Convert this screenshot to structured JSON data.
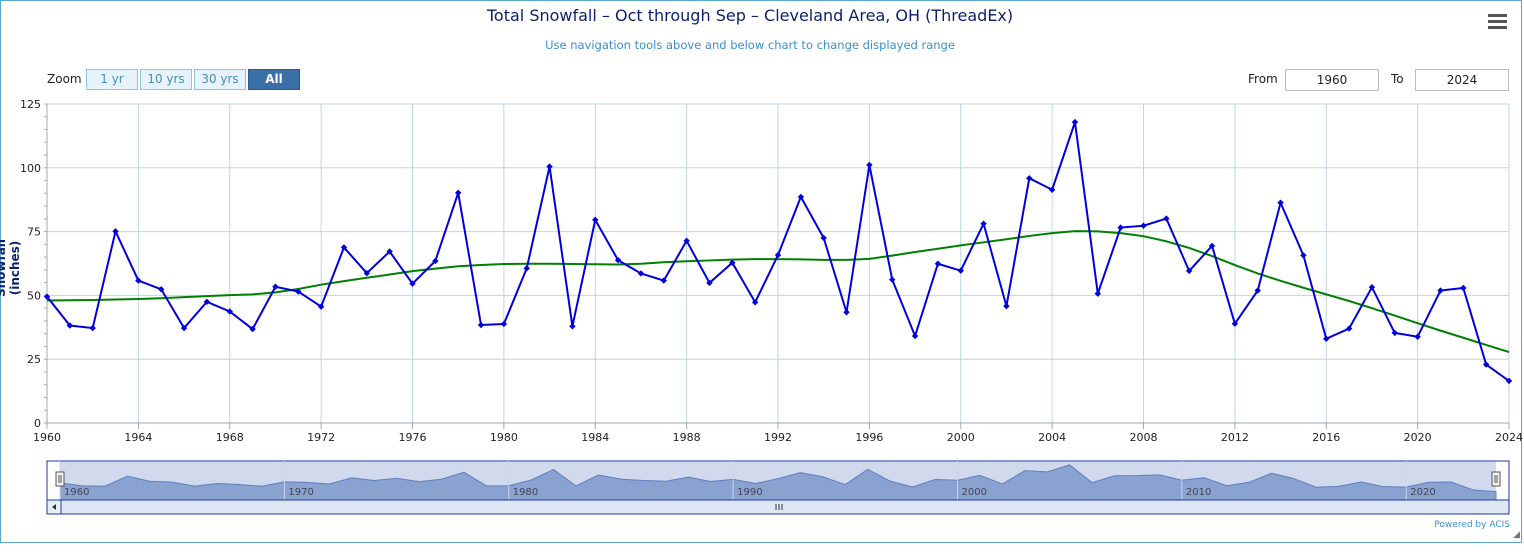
{
  "chart_data": {
    "type": "line",
    "title": "Total Snowfall – Oct through Sep – Cleveland Area, OH (ThreadEx)",
    "subtitle": "Use navigation tools above and below chart to change displayed range",
    "ylabel": "Snowfall (inches)",
    "xlabel": "",
    "xlim": [
      1960,
      2024
    ],
    "ylim": [
      0,
      125
    ],
    "x_ticks": [
      "1960",
      "1964",
      "1968",
      "1972",
      "1976",
      "1980",
      "1984",
      "1988",
      "1992",
      "1996",
      "2000",
      "2004",
      "2008",
      "2012",
      "2016",
      "2020",
      "2024"
    ],
    "y_ticks": [
      "0",
      "25",
      "50",
      "75",
      "100",
      "125"
    ],
    "grid": true,
    "legend": "none",
    "x": [
      1960,
      1961,
      1962,
      1963,
      1964,
      1965,
      1966,
      1967,
      1968,
      1969,
      1970,
      1971,
      1972,
      1973,
      1974,
      1975,
      1976,
      1977,
      1978,
      1979,
      1980,
      1981,
      1982,
      1983,
      1984,
      1985,
      1986,
      1987,
      1988,
      1989,
      1990,
      1991,
      1992,
      1993,
      1994,
      1995,
      1996,
      1997,
      1998,
      1999,
      2000,
      2001,
      2002,
      2003,
      2004,
      2005,
      2006,
      2007,
      2008,
      2009,
      2010,
      2011,
      2012,
      2013,
      2014,
      2015,
      2016,
      2017,
      2018,
      2019,
      2020,
      2021,
      2022,
      2023,
      2024
    ],
    "series": [
      {
        "values": [
          49.5,
          38.2,
          37.2,
          75.1,
          55.8,
          52.4,
          37.2,
          47.5,
          43.7,
          36.8,
          53.4,
          51.5,
          45.6,
          68.8,
          58.7,
          67.2,
          54.6,
          63.5,
          90.2,
          38.4,
          38.8,
          60.6,
          100.5,
          37.9,
          79.6,
          63.8,
          58.6,
          55.8,
          71.4,
          54.9,
          62.8,
          47.3,
          65.8,
          88.6,
          72.5,
          43.4,
          101.1,
          56.2,
          34.1,
          62.4,
          59.7,
          78.1,
          45.8,
          95.9,
          91.4,
          117.9,
          50.7,
          76.6,
          77.3,
          80.1,
          59.6,
          69.4,
          38.9,
          51.9,
          86.3,
          65.7,
          33.0,
          37.0,
          53.2,
          35.3,
          33.8,
          51.9,
          52.9,
          22.9,
          16.5
        ],
        "color": "#0000dd"
      },
      {
        "values": [
          48.0,
          48.1,
          48.2,
          48.4,
          48.6,
          48.9,
          49.3,
          49.7,
          50.1,
          50.4,
          51.2,
          52.5,
          54.2,
          55.6,
          56.9,
          58.2,
          59.5,
          60.5,
          61.4,
          61.9,
          62.3,
          62.4,
          62.4,
          62.3,
          62.2,
          62.1,
          62.4,
          63.0,
          63.4,
          63.7,
          64.0,
          64.2,
          64.2,
          64.1,
          63.9,
          63.9,
          64.3,
          65.6,
          67.0,
          68.3,
          69.6,
          70.8,
          72.0,
          73.3,
          74.4,
          75.2,
          75.1,
          74.4,
          73.2,
          71.2,
          68.6,
          65.4,
          61.9,
          58.6,
          55.7,
          53.0,
          50.4,
          47.8,
          45.0,
          42.1,
          39.1,
          36.2,
          33.4,
          30.6,
          27.8
        ],
        "color": "#008000"
      }
    ]
  },
  "navigator": {
    "labels": [
      "1960",
      "1970",
      "1980",
      "1990",
      "2000",
      "2010",
      "2020"
    ],
    "range": [
      1960,
      2024
    ]
  },
  "controls": {
    "zoom_label": "Zoom",
    "zoom_buttons": [
      "1 yr",
      "10 yrs",
      "30 yrs",
      "All"
    ],
    "active_zoom": "All",
    "from_label": "From",
    "from_value": "1960",
    "to_label": "To",
    "to_value": "2024"
  },
  "credits": "Powered by ACIS",
  "icons": {
    "menu": "hamburger-menu-icon",
    "resize": "resize-corner-icon",
    "scroll_grip": "scrollbar-grip-icon",
    "scroll_left": "arrow-left-icon",
    "handle": "navigator-handle-icon"
  }
}
